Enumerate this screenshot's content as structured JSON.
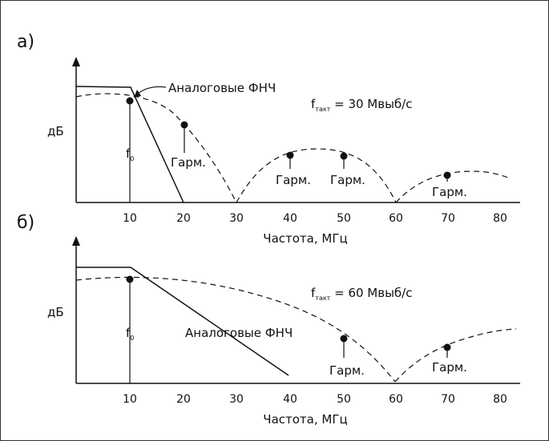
{
  "panels": [
    {
      "label": "а)",
      "ylabel": "дБ",
      "xlabel": "Частота, МГц",
      "ticks": [
        "10",
        "20",
        "30",
        "40",
        "50",
        "60",
        "70",
        "80"
      ],
      "annotation_f": "f",
      "annotation_sub": "такт",
      "annotation_rest": " = 30 Мвыб/с",
      "filter_label": "Аналоговые ФНЧ",
      "fundamental_label": "f",
      "fundamental_sub": "0",
      "harmonic_label": "Гарм."
    },
    {
      "label": "б)",
      "ylabel": "дБ",
      "xlabel": "Частота, МГц",
      "ticks": [
        "10",
        "20",
        "30",
        "40",
        "50",
        "60",
        "70",
        "80"
      ],
      "annotation_f": "f",
      "annotation_sub": "такт",
      "annotation_rest": " = 60 Мвыб/с",
      "filter_label": "Аналоговые ФНЧ",
      "fundamental_label": "f",
      "fundamental_sub": "0",
      "harmonic_label": "Гарм."
    }
  ]
}
